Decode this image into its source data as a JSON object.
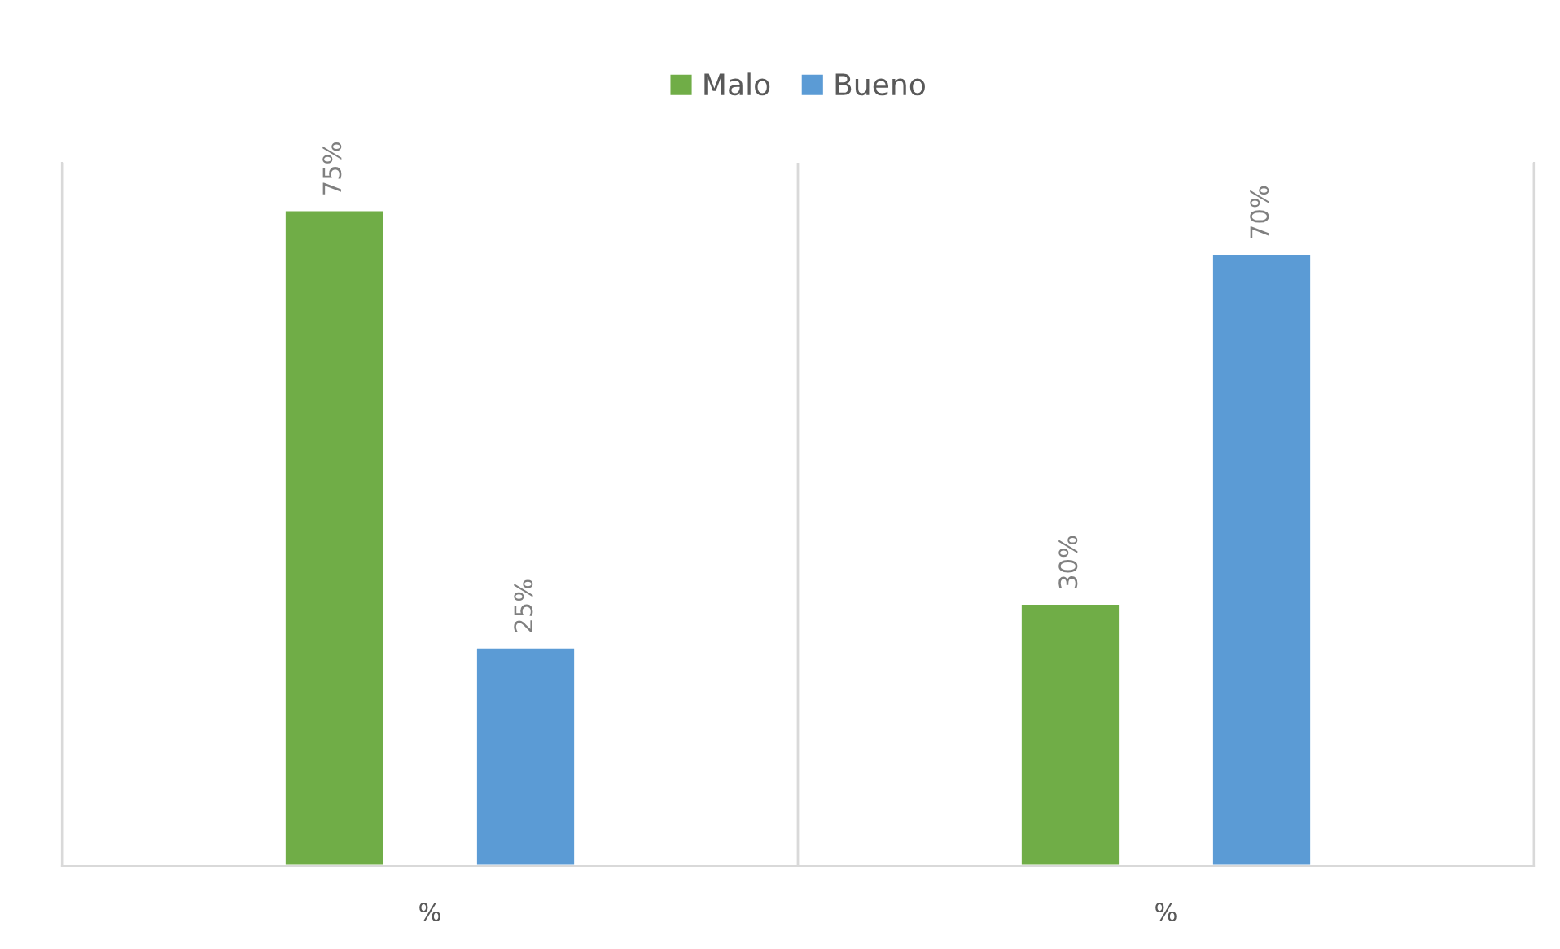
{
  "chart_data": {
    "type": "bar",
    "categories": [
      "%",
      "%"
    ],
    "series": [
      {
        "name": "Malo",
        "color": "#70ad47",
        "values": [
          75,
          30
        ],
        "value_labels": [
          "75%",
          "30%"
        ]
      },
      {
        "name": "Bueno",
        "color": "#5b9bd5",
        "values": [
          25,
          70
        ],
        "value_labels": [
          "25%",
          "70%"
        ]
      }
    ],
    "legend": "top",
    "grid": "x"
  }
}
